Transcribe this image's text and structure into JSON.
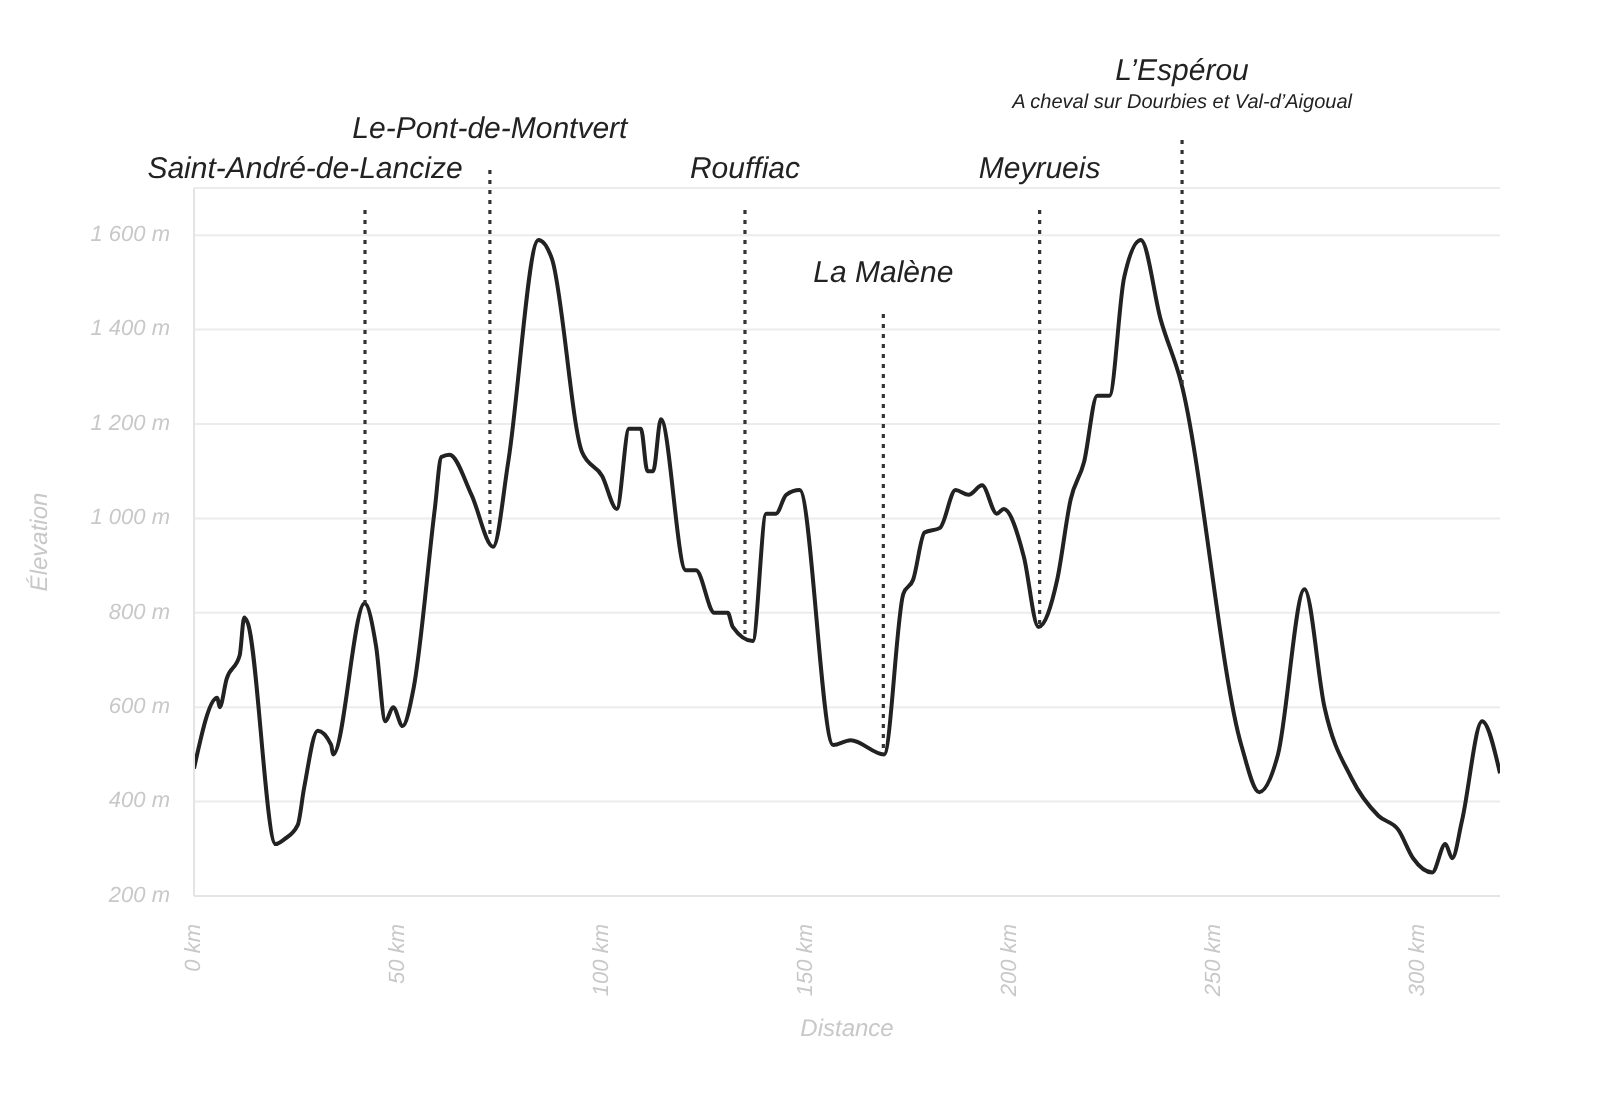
{
  "chart_data": {
    "type": "line",
    "xlabel": "Distance",
    "ylabel": "Élevation",
    "color": "#222222",
    "marker": "none",
    "grid": "y",
    "x": [
      0,
      5.7,
      6.3,
      8.0,
      11.2,
      12.3,
      13.1,
      20.0,
      22.1,
      25.4,
      27.0,
      30.3,
      33.6,
      34.1,
      41.8,
      44.6,
      46.9,
      48.8,
      51.1,
      53.8,
      59.0,
      60.6,
      62.6,
      68.0,
      73.3,
      77.0,
      84.4,
      87.7,
      95.1,
      100.0,
      103.6,
      106.6,
      109.5,
      111.1,
      112.5,
      114.4,
      120.5,
      123.0,
      127.5,
      130.8,
      132.0,
      136.9,
      140.2,
      142.6,
      145.1,
      148.4,
      156.6,
      160.9,
      169.1,
      173.8,
      176.2,
      179.0,
      182.8,
      186.6,
      189.8,
      193.1,
      196.7,
      198.4,
      203.3,
      206.9,
      211.5,
      214.8,
      218.1,
      221.3,
      224.3,
      227.9,
      232.0,
      236.9,
      241.8,
      256.6,
      261.0,
      265.6,
      272.1,
      277.0,
      283.6,
      290.2,
      295.1,
      298.7,
      303.4,
      306.6,
      308.3,
      310.7,
      315.6,
      320.0
    ],
    "values": [
      470,
      620,
      600,
      660,
      710,
      790,
      780,
      310,
      320,
      350,
      430,
      550,
      520,
      500,
      820,
      730,
      570,
      600,
      560,
      640,
      1020,
      1130,
      1135,
      1050,
      940,
      1120,
      1590,
      1550,
      1140,
      1090,
      1020,
      1190,
      1190,
      1100,
      1100,
      1210,
      890,
      890,
      800,
      800,
      770,
      740,
      1010,
      1010,
      1050,
      1060,
      520,
      530,
      500,
      840,
      870,
      970,
      980,
      1060,
      1050,
      1070,
      1010,
      1020,
      920,
      770,
      870,
      1040,
      1120,
      1260,
      1260,
      1510,
      1590,
      1420,
      1290,
      520,
      420,
      500,
      850,
      600,
      450,
      370,
      340,
      280,
      250,
      310,
      280,
      360,
      570,
      460
    ],
    "xlim": [
      0,
      320
    ],
    "xticks": [
      {
        "value": 0,
        "label": "0 km"
      },
      {
        "value": 50,
        "label": "50 km"
      },
      {
        "value": 100,
        "label": "100 km"
      },
      {
        "value": 150,
        "label": "150 km"
      },
      {
        "value": 200,
        "label": "200 km"
      },
      {
        "value": 250,
        "label": "250 km"
      },
      {
        "value": 300,
        "label": "300 km"
      }
    ],
    "ylim": [
      200,
      1700
    ],
    "yticks": [
      {
        "value": 200,
        "label": "200 m"
      },
      {
        "value": 400,
        "label": "400 m"
      },
      {
        "value": 600,
        "label": "600 m"
      },
      {
        "value": 800,
        "label": "800 m"
      },
      {
        "value": 1000,
        "label": "1 000 m"
      },
      {
        "value": 1200,
        "label": "1 200 m"
      },
      {
        "value": 1400,
        "label": "1 400 m"
      },
      {
        "value": 1600,
        "label": "1 600 m"
      }
    ],
    "ref_lines": [
      {
        "axis": "x",
        "value": 41.9,
        "label": "Saint-André-de-Lancize",
        "line_style": "dotted"
      },
      {
        "axis": "x",
        "value": 72.5,
        "label": "Le-Pont-de-Montvert",
        "line_style": "dotted"
      },
      {
        "axis": "x",
        "value": 135.0,
        "label": "Rouffiac",
        "line_style": "dotted"
      },
      {
        "axis": "x",
        "value": 168.9,
        "label": "La Malène",
        "line_style": "dotted"
      },
      {
        "axis": "x",
        "value": 207.2,
        "label": "Meyrueis",
        "line_style": "dotted"
      },
      {
        "axis": "x",
        "value": 242.1,
        "label": "L’Espérou\nA cheval sur Dourbies et Val-d’Aigoual",
        "line_style": "dotted"
      }
    ]
  }
}
